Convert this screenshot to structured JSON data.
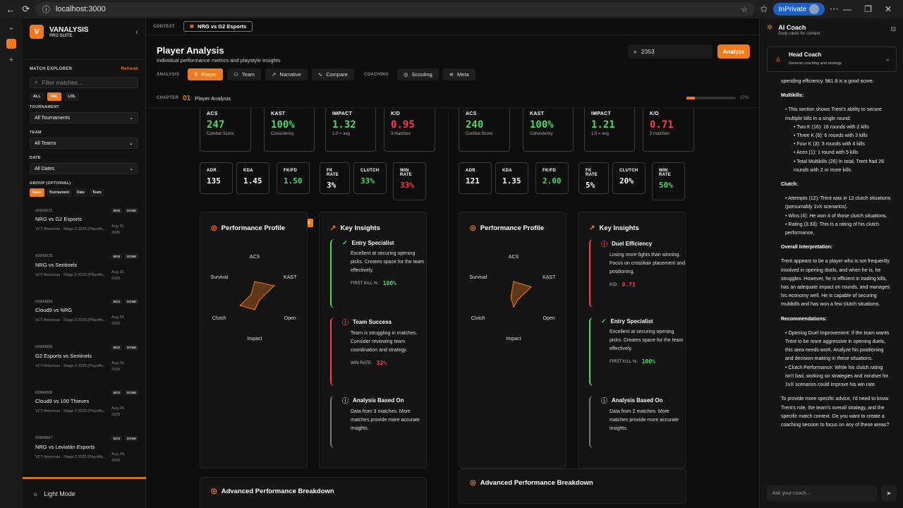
{
  "browser": {
    "url": "localhost:3000",
    "inprivate": "InPrivate"
  },
  "brand": {
    "name": "VANALYSIS",
    "sub": "PRO SUITE",
    "logo": "V"
  },
  "sidebar": {
    "section": "MATCH EXPLORER",
    "refresh": "Refresh",
    "filter_placeholder": "Filter matches...",
    "games": [
      "ALL",
      "VAL",
      "LOL"
    ],
    "tournament_label": "TOURNAMENT",
    "tournament_value": "All Tournaments",
    "team_label": "TEAM",
    "team_value": "All Teams",
    "date_label": "DATE",
    "date_value": "All Dates",
    "group_label": "GROUP (OPTIONAL)",
    "groups": [
      "None",
      "Tournament",
      "Date",
      "Team"
    ],
    "matches": [
      {
        "id": "#2843071",
        "bo": "BO5",
        "status": "DONE",
        "title": "NRG vs G2 Esports",
        "event": "VCT Americas - Stage 2 2025 (Playoffs...",
        "date": "Aug 31, 2025"
      },
      {
        "id": "#2843078",
        "bo": "BO5",
        "status": "DONE",
        "title": "NRG vs Sentinels",
        "event": "VCT Americas - Stage 2 2025 (Playoffs...",
        "date": "Aug 30, 2025"
      },
      {
        "id": "#2843069",
        "bo": "BO3",
        "status": "DONE",
        "title": "Cloud9 vs NRG",
        "event": "VCT Americas - Stage 2 2025 (Playoffs...",
        "date": "Aug 29, 2025"
      },
      {
        "id": "#2843068",
        "bo": "BO3",
        "status": "DONE",
        "title": "G2 Esports vs Sentinels",
        "event": "VCT Americas - Stage 2 2025 (Playoffs...",
        "date": "Aug 29, 2025"
      },
      {
        "id": "#2843066",
        "bo": "BO3",
        "status": "DONE",
        "title": "Cloud9 vs 100 Thieves",
        "event": "VCT Americas - Stage 2 2025 (Playoffs...",
        "date": "Aug 24, 2025"
      },
      {
        "id": "#2843067",
        "bo": "BO3",
        "status": "DONE",
        "title": "NRG vs Leviatán Esports",
        "event": "VCT Americas - Stage 2 2025 (Playoffs...",
        "date": "Aug 24, 2025"
      }
    ],
    "light_mode": "Light Mode"
  },
  "main": {
    "context_label": "CONTEXT",
    "context_value": "NRG vs G2 Esports",
    "title": "Player Analysis",
    "subtitle": "Individual performance metrics and playstyle insights",
    "search_value": "2353",
    "analyze": "Analyze",
    "analysis_label": "ANALYSIS",
    "coaching_label": "COACHING",
    "tabs": [
      "Player",
      "Team",
      "Narrative",
      "Compare",
      "Scouting",
      "Meta"
    ],
    "chapter_label": "CHAPTER",
    "chapter_num": "01",
    "chapter_name": "Player Analysis",
    "progress_text": "17%",
    "progress": 0.17,
    "drag_tip": "Drag to AI Coach",
    "perf_title": "Performance Profile",
    "insights_title": "Key Insights",
    "adv_title": "Advanced Performance Breakdown",
    "radar_labels": [
      "ACS",
      "KAST",
      "Open",
      "Impact",
      "Clutch",
      "Survival"
    ],
    "left": {
      "top": [
        {
          "label": "ACS",
          "value": "247",
          "sub": "Combat Score",
          "color": "green"
        },
        {
          "label": "KAST",
          "value": "100%",
          "sub": "Consistency",
          "color": "green"
        },
        {
          "label": "IMPACT",
          "value": "1.32",
          "sub": "1.0 = avg",
          "color": "green"
        },
        {
          "label": "K/D",
          "value": "0.95",
          "sub": "3 matches",
          "color": "red"
        }
      ],
      "bottom": [
        {
          "label": "ADR",
          "value": "135",
          "color": "white"
        },
        {
          "label": "KDA",
          "value": "1.45",
          "color": "white"
        },
        {
          "label": "FK/FD",
          "value": "1.50",
          "color": "green"
        },
        {
          "label": "FK RATE",
          "value": "3%",
          "color": "white"
        },
        {
          "label": "CLUTCH",
          "value": "33%",
          "color": "green"
        },
        {
          "label": "WIN RATE",
          "value": "33%",
          "color": "red"
        }
      ],
      "radar": [
        0.55,
        0.8,
        0.2,
        0.45,
        0.6,
        0.15
      ],
      "insights": [
        {
          "title": "Entry Specialist",
          "body": "Excellent at securing opening picks. Creates space for the team effectively.",
          "metric_label": "FIRST KILL %:",
          "metric_value": "100%",
          "type": "good"
        },
        {
          "title": "Team Success",
          "body": "Team is struggling in matches. Consider reviewing team coordination and strategy.",
          "metric_label": "WIN RATE:",
          "metric_value": "33%",
          "type": "bad"
        },
        {
          "title": "Analysis Based On",
          "body": "Data from 3 matches. More matches provide more accurate insights.",
          "type": "info"
        }
      ]
    },
    "right": {
      "top": [
        {
          "label": "ACS",
          "value": "240",
          "sub": "Combat Score",
          "color": "green"
        },
        {
          "label": "KAST",
          "value": "100%",
          "sub": "Consistency",
          "color": "green"
        },
        {
          "label": "IMPACT",
          "value": "1.21",
          "sub": "1.0 = avg",
          "color": "green"
        },
        {
          "label": "K/D",
          "value": "0.71",
          "sub": "2 matches",
          "color": "red"
        }
      ],
      "bottom": [
        {
          "label": "ADR",
          "value": "121",
          "color": "white"
        },
        {
          "label": "KDA",
          "value": "1.35",
          "color": "white"
        },
        {
          "label": "FK/FD",
          "value": "2.00",
          "color": "green"
        },
        {
          "label": "FK RATE",
          "value": "5%",
          "color": "white"
        },
        {
          "label": "CLUTCH",
          "value": "20%",
          "color": "white"
        },
        {
          "label": "WIN RATE",
          "value": "50%",
          "color": "green"
        }
      ],
      "radar": [
        0.55,
        0.72,
        0.18,
        0.35,
        0.1,
        0.1
      ],
      "insights": [
        {
          "title": "Duel Efficiency",
          "body": "Losing more fights than winning. Focus on crosshair placement and positioning.",
          "metric_label": "K/D:",
          "metric_value": "0.71",
          "type": "bad"
        },
        {
          "title": "Entry Specialist",
          "body": "Excellent at securing opening picks. Creates space for the team effectively.",
          "metric_label": "FIRST KILL %:",
          "metric_value": "100%",
          "type": "good"
        },
        {
          "title": "Analysis Based On",
          "body": "Data from 2 matches. More matches provide more accurate insights.",
          "type": "info"
        }
      ]
    }
  },
  "coach": {
    "title": "AI Coach",
    "sub": "Drop cards for context",
    "head": "Head Coach",
    "head_sub": "General coaching and strategy",
    "input_placeholder": "Ask your coach...",
    "lines": [
      {
        "t": "spending efficiency. 981.8 is a good score.",
        "c": ""
      },
      {
        "t": "gap"
      },
      {
        "t": "Multikills:",
        "c": "h"
      },
      {
        "t": "gap"
      },
      {
        "t": "•  This section shows Trent's ability to secure multiple kills in a single round:",
        "c": "b"
      },
      {
        "t": "•  Two K (16): 16 rounds with 2 kills",
        "c": "bb"
      },
      {
        "t": "•  Three K (6): 6 rounds with 3 kills",
        "c": "bb"
      },
      {
        "t": "•  Four K (3): 3 rounds with 4 kills",
        "c": "bb"
      },
      {
        "t": "•  Aces (1): 1 round with 5 kills",
        "c": "bb"
      },
      {
        "t": "•  Total Multikills (26) In total, Trent had 26 rounds with 2 or more kills.",
        "c": "bb"
      },
      {
        "t": "gap"
      },
      {
        "t": "Clutch:",
        "c": "h"
      },
      {
        "t": "gap"
      },
      {
        "t": "•  Attempts (12): Trent was in 12 clutch situations (presumably 1vX scenarios).",
        "c": "b"
      },
      {
        "t": "•  Wins (4): He won 4 of those clutch situations.",
        "c": "b"
      },
      {
        "t": "•  Rating (3.33): This is a rating of his clutch performance.",
        "c": "b"
      },
      {
        "t": "gap"
      },
      {
        "t": "Overall Interpretation:",
        "c": "h"
      },
      {
        "t": "gap"
      },
      {
        "t": "Trent appears to be a player who is not frequently involved in opening duels, and when he is, he struggles. However, he is efficient in trading kills, has an adequate impact on rounds, and manages his economy well. He is capable of securing multikills and has won a few clutch situations.",
        "c": ""
      },
      {
        "t": "gap"
      },
      {
        "t": "Recommendations:",
        "c": "h"
      },
      {
        "t": "gap"
      },
      {
        "t": "•  Opening Duel Improvement: If the team wants Trent to be more aggressive in opening duels, this area needs work. Analyze his positioning and decision-making in these situations.",
        "c": "b"
      },
      {
        "t": "•  Clutch Performance: While his clutch rating isn't bad, working on strategies and mindset for 1vX scenarios could improve his win rate.",
        "c": "b"
      },
      {
        "t": "gap"
      },
      {
        "t": "To provide more specific advice, I'd need to know Trent's role, the team's overall strategy, and the specific match context. Do you want to create a coaching session to focus on any of these areas?",
        "c": ""
      }
    ]
  }
}
